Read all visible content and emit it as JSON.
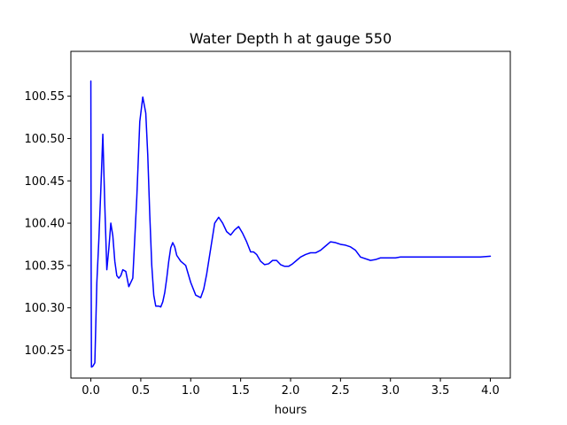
{
  "chart_data": {
    "type": "line",
    "title": "Water Depth h at gauge 550",
    "xlabel": "hours",
    "ylabel": "",
    "xlim": [
      -0.2,
      4.2
    ],
    "ylim": [
      100.217,
      100.603
    ],
    "xticks": [
      "0.0",
      "0.5",
      "1.0",
      "1.5",
      "2.0",
      "2.5",
      "3.0",
      "3.5",
      "4.0"
    ],
    "yticks": [
      "100.25",
      "100.30",
      "100.35",
      "100.40",
      "100.45",
      "100.50",
      "100.55"
    ],
    "grid": false,
    "legend": "none",
    "series": [
      {
        "color": "#0000ff",
        "x": [
          0.0,
          0.001,
          0.003,
          0.006,
          0.02,
          0.04,
          0.06,
          0.08,
          0.1,
          0.12,
          0.14,
          0.16,
          0.18,
          0.2,
          0.22,
          0.24,
          0.26,
          0.28,
          0.3,
          0.32,
          0.35,
          0.38,
          0.42,
          0.46,
          0.49,
          0.52,
          0.55,
          0.57,
          0.59,
          0.61,
          0.63,
          0.65,
          0.68,
          0.7,
          0.72,
          0.74,
          0.76,
          0.78,
          0.8,
          0.82,
          0.84,
          0.86,
          0.9,
          0.95,
          1.0,
          1.05,
          1.1,
          1.13,
          1.16,
          1.2,
          1.24,
          1.28,
          1.32,
          1.36,
          1.4,
          1.44,
          1.48,
          1.52,
          1.56,
          1.6,
          1.63,
          1.66,
          1.7,
          1.74,
          1.78,
          1.82,
          1.86,
          1.9,
          1.94,
          1.98,
          2.02,
          2.06,
          2.1,
          2.15,
          2.2,
          2.25,
          2.3,
          2.35,
          2.4,
          2.45,
          2.5,
          2.55,
          2.6,
          2.65,
          2.7,
          2.8,
          2.85,
          2.9,
          2.95,
          3.0,
          3.05,
          3.1,
          3.2,
          3.3,
          3.4,
          3.45,
          3.5,
          3.6,
          3.7,
          3.8,
          3.9,
          4.0
        ],
        "y": [
          100.568,
          100.5,
          100.35,
          100.23,
          100.231,
          100.235,
          100.33,
          100.38,
          100.44,
          100.505,
          100.42,
          100.345,
          100.37,
          100.4,
          100.385,
          100.355,
          100.338,
          100.335,
          100.338,
          100.345,
          100.343,
          100.325,
          100.335,
          100.43,
          100.52,
          100.549,
          100.53,
          100.48,
          100.41,
          100.35,
          100.315,
          100.302,
          100.302,
          100.301,
          100.307,
          100.318,
          100.335,
          100.355,
          100.371,
          100.377,
          100.372,
          100.362,
          100.355,
          100.35,
          100.33,
          100.315,
          100.312,
          100.322,
          100.34,
          100.37,
          100.4,
          100.407,
          100.4,
          100.39,
          100.386,
          100.392,
          100.396,
          100.388,
          100.378,
          100.366,
          100.366,
          100.363,
          100.355,
          100.351,
          100.352,
          100.356,
          100.356,
          100.351,
          100.349,
          100.349,
          100.352,
          100.356,
          100.36,
          100.363,
          100.365,
          100.365,
          100.368,
          100.373,
          100.378,
          100.377,
          100.375,
          100.374,
          100.372,
          100.368,
          100.36,
          100.356,
          100.357,
          100.359,
          100.359,
          100.359,
          100.359,
          100.36,
          100.36,
          100.36,
          100.36,
          100.36,
          100.36,
          100.36,
          100.36,
          100.36,
          100.36,
          100.361
        ]
      }
    ]
  }
}
